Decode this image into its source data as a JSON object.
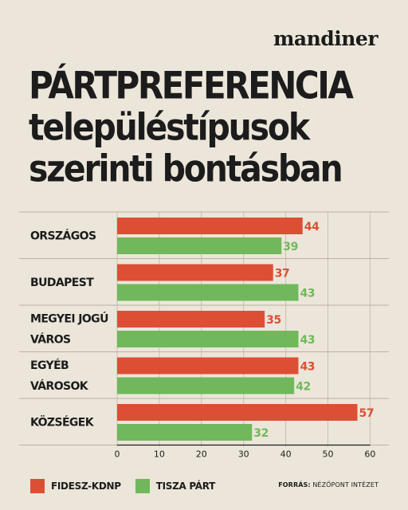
{
  "brand": "mandiner",
  "title": {
    "line1": "PÁRTPREFERENCIA",
    "line2": "településtípusok",
    "line3": "szerinti bontásban"
  },
  "chart_data": {
    "type": "bar",
    "orientation": "horizontal",
    "categories": [
      [
        "ORSZÁGOS"
      ],
      [
        "BUDAPEST"
      ],
      [
        "MEGYEI JOGÚ",
        "VÁROS"
      ],
      [
        "EGYÉB",
        "VÁROSOK"
      ],
      [
        "KÖZSÉGEK"
      ]
    ],
    "series": [
      {
        "name": "FIDESZ-KDNP",
        "color": "#dc4f35",
        "values": [
          44,
          37,
          35,
          43,
          57
        ]
      },
      {
        "name": "TISZA PÁRT",
        "color": "#70b85b",
        "values": [
          39,
          43,
          43,
          42,
          32
        ]
      }
    ],
    "xlim": [
      0,
      60
    ],
    "xticks": [
      0,
      10,
      20,
      30,
      40,
      50,
      60
    ],
    "grid": true,
    "legend_position": "bottom-left"
  },
  "source": {
    "label": "FORRÁS:",
    "text": "NÉZŐPONT INTÉZET"
  }
}
